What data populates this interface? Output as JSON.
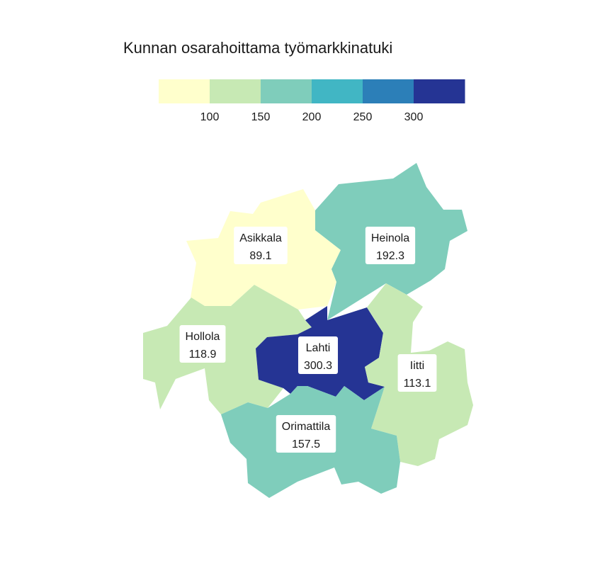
{
  "title": "Kunnan osarahoittama työmarkkinatuki",
  "legend": {
    "bins": [
      {
        "min": null,
        "max": 100,
        "color": "#ffffcc"
      },
      {
        "min": 100,
        "max": 150,
        "color": "#c7e9b4"
      },
      {
        "min": 150,
        "max": 200,
        "color": "#7fcdbb"
      },
      {
        "min": 200,
        "max": 250,
        "color": "#41b6c4"
      },
      {
        "min": 250,
        "max": 300,
        "color": "#2c7fb8"
      },
      {
        "min": 300,
        "max": null,
        "color": "#253494"
      }
    ],
    "ticks": [
      "100",
      "150",
      "200",
      "250",
      "300"
    ]
  },
  "municipalities": [
    {
      "id": "asikkala",
      "name": "Asikkala",
      "value": "89.1"
    },
    {
      "id": "heinola",
      "name": "Heinola",
      "value": "192.3"
    },
    {
      "id": "hollola",
      "name": "Hollola",
      "value": "118.9"
    },
    {
      "id": "lahti",
      "name": "Lahti",
      "value": "300.3"
    },
    {
      "id": "iitti",
      "name": "Iitti",
      "value": "113.1"
    },
    {
      "id": "orimattila",
      "name": "Orimattila",
      "value": "157.5"
    }
  ]
}
